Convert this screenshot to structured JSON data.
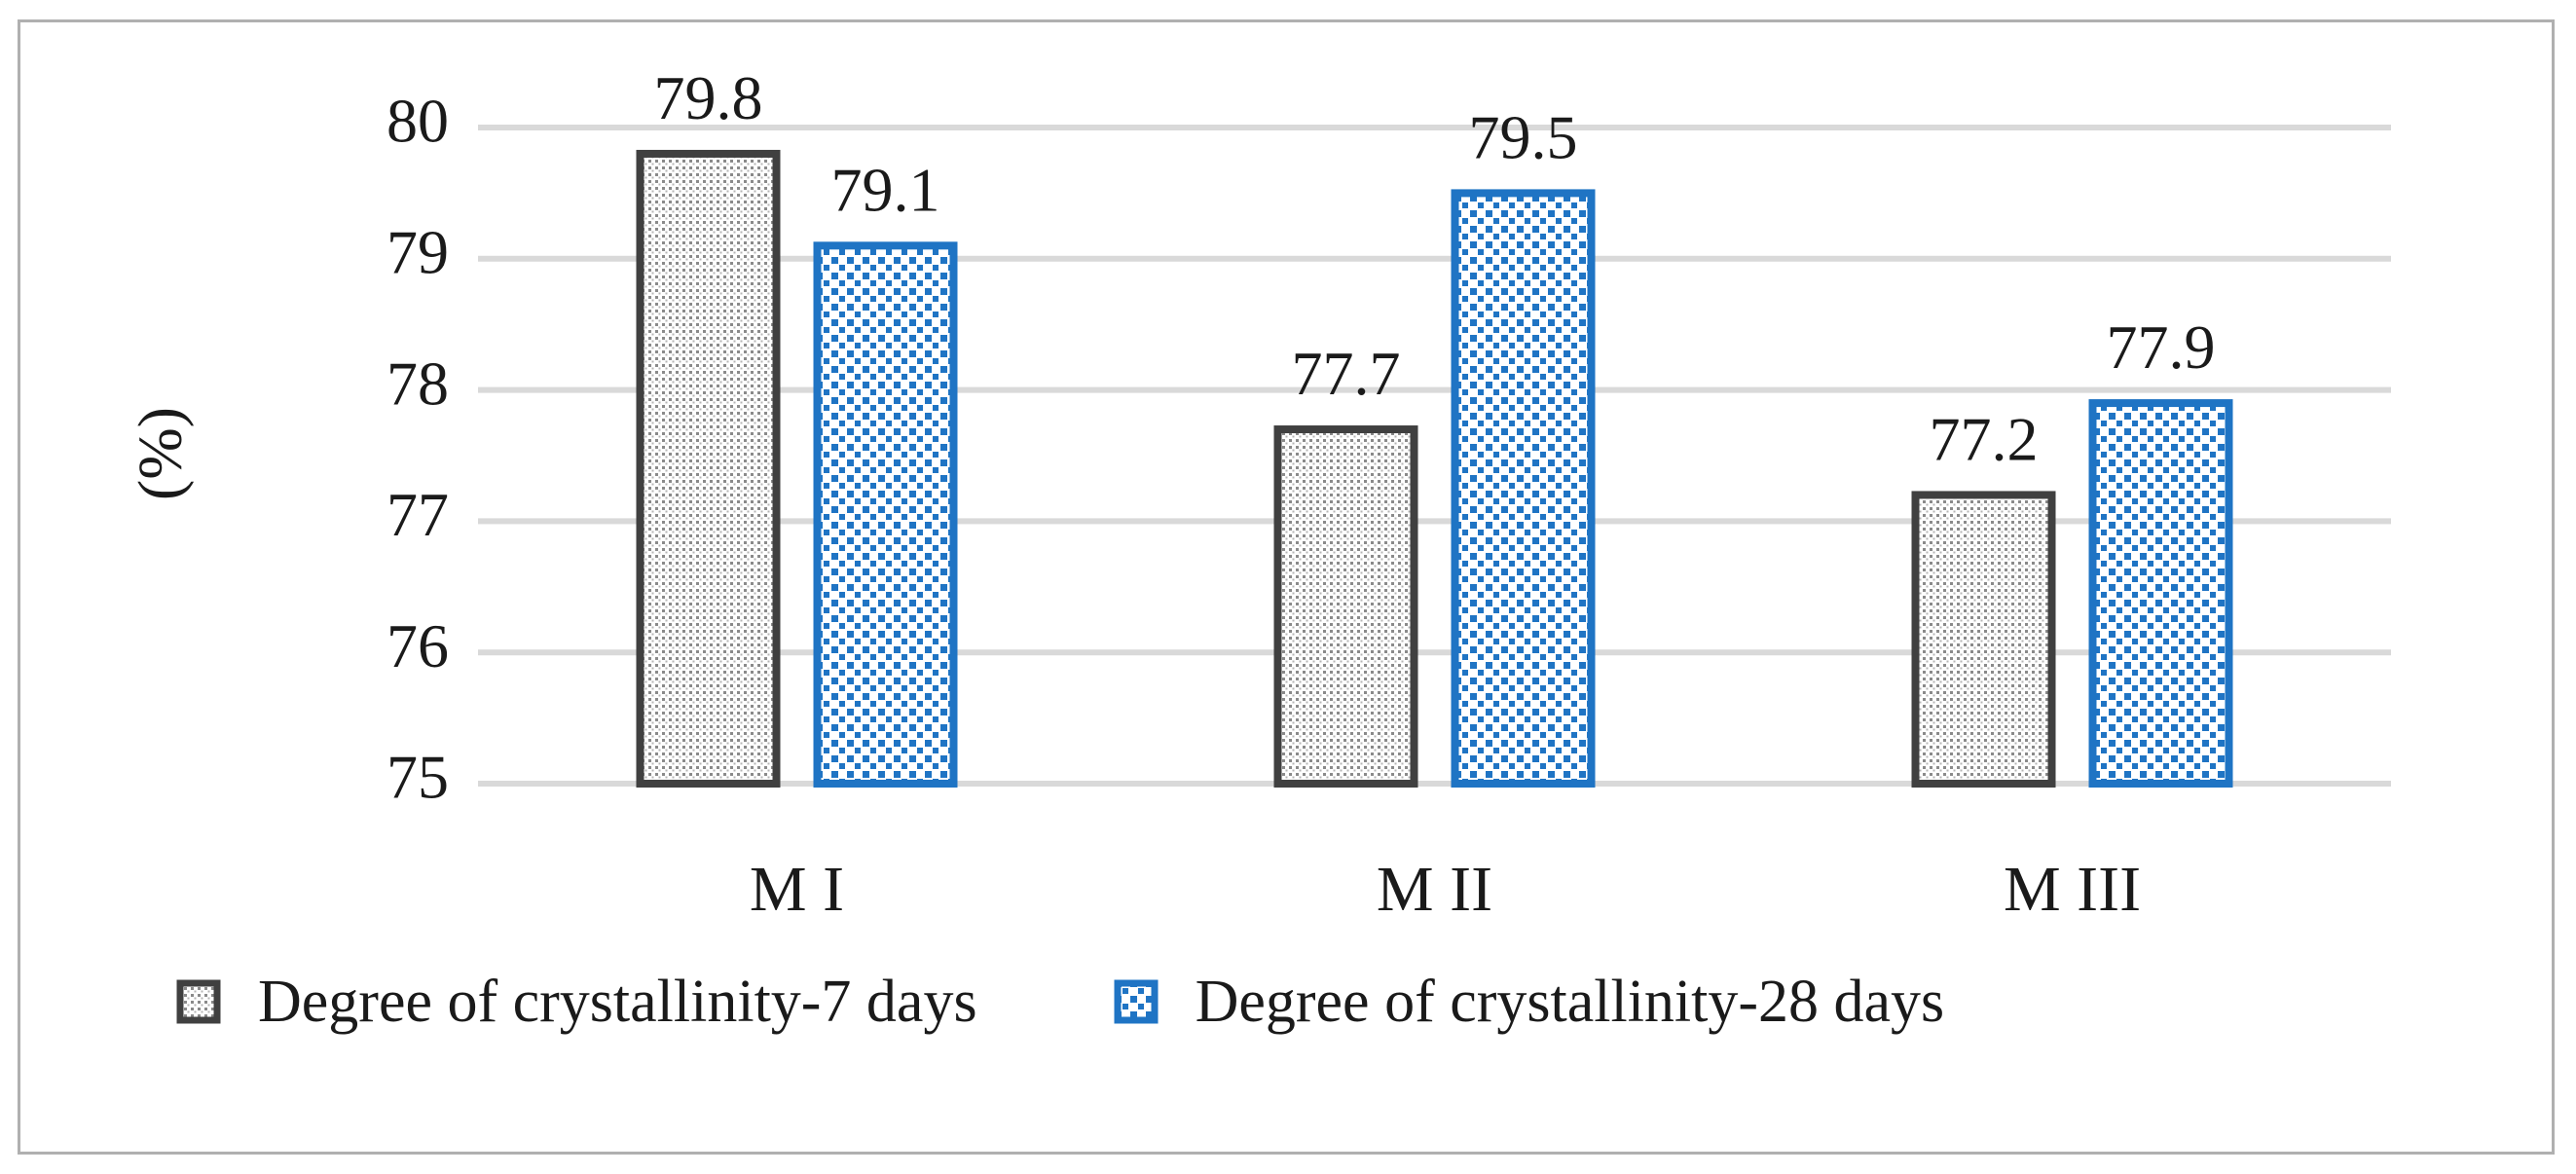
{
  "chart_data": {
    "type": "bar",
    "title": "",
    "xlabel": "",
    "ylabel": "(%)",
    "ylim": [
      75,
      80
    ],
    "yticks": [
      75,
      76,
      77,
      78,
      79,
      80
    ],
    "grid": true,
    "categories": [
      "M I",
      "M II",
      "M III"
    ],
    "series": [
      {
        "name": "Degree of crystallinity-7 days",
        "values": [
          79.8,
          77.7,
          77.2
        ],
        "color": "#404040"
      },
      {
        "name": "Degree of crystallinity-28 days",
        "values": [
          79.1,
          79.5,
          77.9
        ],
        "color": "#1f74c4"
      }
    ],
    "data_labels": [
      "79.8",
      "77.7",
      "77.2",
      "79.1",
      "79.5",
      "77.9"
    ],
    "legend_position": "bottom"
  }
}
